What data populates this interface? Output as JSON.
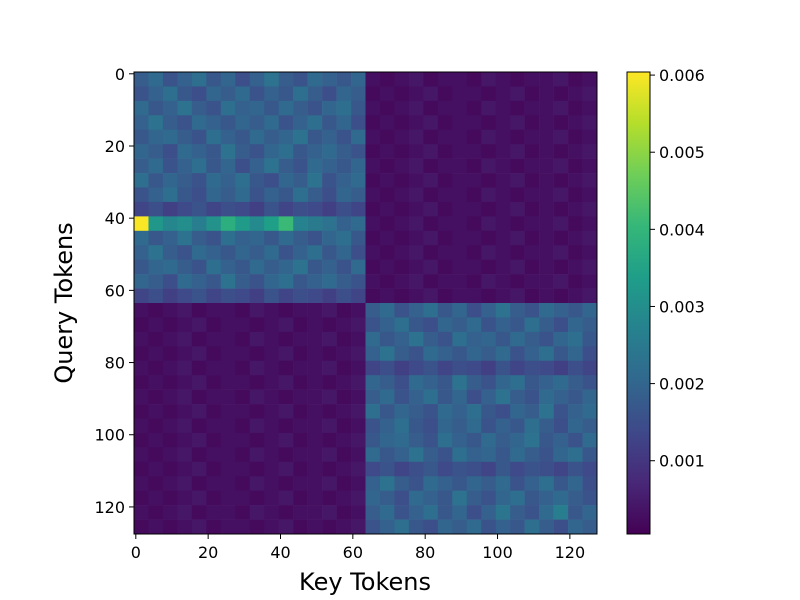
{
  "chart_data": {
    "type": "heatmap",
    "xlabel": "Key Tokens",
    "ylabel": "Query Tokens",
    "xlim": [
      -0.5,
      127.5
    ],
    "ylim": [
      127.5,
      -0.5
    ],
    "xticks": [
      0,
      20,
      40,
      60,
      80,
      100,
      120
    ],
    "yticks": [
      0,
      20,
      40,
      60,
      80,
      100,
      120
    ],
    "colormap": "viridis",
    "colorbar_lim": [
      5e-05,
      0.00604
    ],
    "colorbar_ticks": [
      0.001,
      0.002,
      0.003,
      0.004,
      0.005,
      0.006
    ],
    "z": [
      [
        0.0018,
        0.0021,
        0.0016,
        0.0019,
        0.0022,
        0.0017,
        0.002,
        0.0015,
        0.0019,
        0.0023,
        0.0018,
        0.0016,
        0.0021,
        0.0019,
        0.0017,
        0.002,
        0.0003,
        0.0002,
        0.0003,
        0.0004,
        0.0002,
        0.0003,
        0.0003,
        0.0002,
        0.0004,
        0.0003,
        0.0002,
        0.0003,
        0.0003,
        0.0004,
        0.0002,
        0.0003
      ],
      [
        0.0016,
        0.0019,
        0.0022,
        0.0017,
        0.0015,
        0.002,
        0.0018,
        0.0021,
        0.0016,
        0.0019,
        0.0017,
        0.0022,
        0.0018,
        0.0015,
        0.002,
        0.0018,
        0.0002,
        0.0003,
        0.0002,
        0.0003,
        0.0004,
        0.0002,
        0.0003,
        0.0003,
        0.0002,
        0.0003,
        0.0004,
        0.0002,
        0.0003,
        0.0002,
        0.0003,
        0.0004
      ],
      [
        0.0021,
        0.0017,
        0.0019,
        0.0023,
        0.0018,
        0.0016,
        0.0022,
        0.0019,
        0.002,
        0.0017,
        0.0021,
        0.0018,
        0.0016,
        0.002,
        0.0022,
        0.0017,
        0.0003,
        0.0002,
        0.0003,
        0.0004,
        0.0002,
        0.0003,
        0.0003,
        0.0002,
        0.0004,
        0.0003,
        0.0002,
        0.0003,
        0.0003,
        0.0004,
        0.0002,
        0.0003
      ],
      [
        0.0019,
        0.0023,
        0.0018,
        0.0016,
        0.0021,
        0.0019,
        0.0017,
        0.002,
        0.0018,
        0.0021,
        0.0016,
        0.0019,
        0.0022,
        0.0017,
        0.002,
        0.0015,
        0.0002,
        0.0003,
        0.0002,
        0.0003,
        0.0004,
        0.0002,
        0.0003,
        0.0003,
        0.0002,
        0.0003,
        0.0004,
        0.0002,
        0.0003,
        0.0002,
        0.0003,
        0.0004
      ],
      [
        0.0017,
        0.002,
        0.0021,
        0.0018,
        0.0016,
        0.0022,
        0.0019,
        0.0017,
        0.0021,
        0.0018,
        0.002,
        0.0023,
        0.0017,
        0.0019,
        0.0016,
        0.0021,
        0.0003,
        0.0002,
        0.0003,
        0.0004,
        0.0002,
        0.0003,
        0.0003,
        0.0002,
        0.0004,
        0.0003,
        0.0002,
        0.0003,
        0.0003,
        0.0004,
        0.0002,
        0.0003
      ],
      [
        0.002,
        0.0018,
        0.0015,
        0.0021,
        0.0019,
        0.0017,
        0.0023,
        0.0018,
        0.0016,
        0.002,
        0.0022,
        0.0017,
        0.0019,
        0.0021,
        0.0018,
        0.0016,
        0.0002,
        0.0003,
        0.0002,
        0.0003,
        0.0004,
        0.0002,
        0.0003,
        0.0003,
        0.0002,
        0.0003,
        0.0004,
        0.0002,
        0.0003,
        0.0002,
        0.0003,
        0.0004
      ],
      [
        0.0018,
        0.0021,
        0.0016,
        0.0019,
        0.0022,
        0.0017,
        0.002,
        0.0015,
        0.0019,
        0.0023,
        0.0018,
        0.0016,
        0.0021,
        0.0019,
        0.0017,
        0.002,
        0.0003,
        0.0002,
        0.0003,
        0.0004,
        0.0002,
        0.0003,
        0.0003,
        0.0002,
        0.0004,
        0.0003,
        0.0002,
        0.0003,
        0.0003,
        0.0004,
        0.0002,
        0.0003
      ],
      [
        0.0022,
        0.0017,
        0.002,
        0.0018,
        0.0016,
        0.0021,
        0.0019,
        0.0022,
        0.0017,
        0.0015,
        0.002,
        0.0018,
        0.0023,
        0.0016,
        0.0019,
        0.0021,
        0.0002,
        0.0003,
        0.0002,
        0.0003,
        0.0004,
        0.0002,
        0.0003,
        0.0003,
        0.0002,
        0.0003,
        0.0004,
        0.0002,
        0.0003,
        0.0002,
        0.0003,
        0.0004
      ],
      [
        0.0016,
        0.0019,
        0.0022,
        0.0017,
        0.0015,
        0.002,
        0.0018,
        0.0021,
        0.0016,
        0.0019,
        0.0017,
        0.0022,
        0.0018,
        0.0015,
        0.002,
        0.0018,
        0.0003,
        0.0002,
        0.0003,
        0.0004,
        0.0002,
        0.0003,
        0.0003,
        0.0002,
        0.0004,
        0.0003,
        0.0002,
        0.0003,
        0.0003,
        0.0004,
        0.0002,
        0.0003
      ],
      [
        0.0013,
        0.0015,
        0.0012,
        0.0014,
        0.0016,
        0.0013,
        0.0015,
        0.0014,
        0.0012,
        0.0016,
        0.0013,
        0.0015,
        0.0014,
        0.0012,
        0.0015,
        0.0013,
        0.0002,
        0.0003,
        0.0002,
        0.0003,
        0.0004,
        0.0002,
        0.0003,
        0.0003,
        0.0002,
        0.0003,
        0.0004,
        0.0002,
        0.0003,
        0.0002,
        0.0003,
        0.0004
      ],
      [
        0.006,
        0.0032,
        0.0028,
        0.003,
        0.0026,
        0.0031,
        0.0038,
        0.0033,
        0.0029,
        0.0034,
        0.0041,
        0.0027,
        0.0025,
        0.0023,
        0.0019,
        0.0021,
        0.0003,
        0.0002,
        0.0003,
        0.0004,
        0.0002,
        0.0003,
        0.0003,
        0.0002,
        0.0004,
        0.0003,
        0.0002,
        0.0003,
        0.0003,
        0.0004,
        0.0002,
        0.0003
      ],
      [
        0.0021,
        0.0017,
        0.0019,
        0.0023,
        0.0018,
        0.0016,
        0.0022,
        0.0019,
        0.002,
        0.0017,
        0.0021,
        0.0018,
        0.0016,
        0.002,
        0.0022,
        0.0017,
        0.0002,
        0.0003,
        0.0002,
        0.0003,
        0.0004,
        0.0002,
        0.0003,
        0.0003,
        0.0002,
        0.0003,
        0.0004,
        0.0002,
        0.0003,
        0.0002,
        0.0003,
        0.0004
      ],
      [
        0.0019,
        0.0023,
        0.0018,
        0.0016,
        0.0021,
        0.0019,
        0.0017,
        0.002,
        0.0018,
        0.0021,
        0.0016,
        0.0019,
        0.0022,
        0.0017,
        0.002,
        0.0015,
        0.0003,
        0.0002,
        0.0003,
        0.0004,
        0.0002,
        0.0003,
        0.0003,
        0.0002,
        0.0004,
        0.0003,
        0.0002,
        0.0003,
        0.0003,
        0.0004,
        0.0002,
        0.0003
      ],
      [
        0.0017,
        0.002,
        0.0021,
        0.0018,
        0.0016,
        0.0022,
        0.0019,
        0.0017,
        0.0021,
        0.0018,
        0.002,
        0.0023,
        0.0017,
        0.0019,
        0.0016,
        0.0021,
        0.0002,
        0.0003,
        0.0002,
        0.0003,
        0.0004,
        0.0002,
        0.0003,
        0.0003,
        0.0002,
        0.0003,
        0.0004,
        0.0002,
        0.0003,
        0.0002,
        0.0003,
        0.0004
      ],
      [
        0.002,
        0.0018,
        0.0015,
        0.0021,
        0.0019,
        0.0017,
        0.0023,
        0.0018,
        0.0016,
        0.002,
        0.0022,
        0.0017,
        0.0019,
        0.0021,
        0.0018,
        0.0016,
        0.0003,
        0.0002,
        0.0003,
        0.0004,
        0.0002,
        0.0003,
        0.0003,
        0.0002,
        0.0004,
        0.0003,
        0.0002,
        0.0003,
        0.0003,
        0.0004,
        0.0002,
        0.0003
      ],
      [
        0.0013,
        0.0015,
        0.0012,
        0.0014,
        0.0016,
        0.0013,
        0.0015,
        0.0014,
        0.0012,
        0.0016,
        0.0013,
        0.0015,
        0.0014,
        0.0012,
        0.0015,
        0.0013,
        0.0002,
        0.0003,
        0.0002,
        0.0003,
        0.0004,
        0.0002,
        0.0003,
        0.0003,
        0.0002,
        0.0003,
        0.0004,
        0.0002,
        0.0003,
        0.0002,
        0.0003,
        0.0004
      ],
      [
        0.0003,
        0.0002,
        0.0003,
        0.0004,
        0.0002,
        0.0003,
        0.0003,
        0.0002,
        0.0004,
        0.0003,
        0.0002,
        0.0003,
        0.0003,
        0.0004,
        0.0002,
        0.0003,
        0.0018,
        0.0021,
        0.0016,
        0.0019,
        0.0022,
        0.0017,
        0.002,
        0.0015,
        0.0019,
        0.0023,
        0.0018,
        0.0016,
        0.0021,
        0.0019,
        0.0017,
        0.002
      ],
      [
        0.0002,
        0.0003,
        0.0002,
        0.0003,
        0.0004,
        0.0002,
        0.0003,
        0.0003,
        0.0002,
        0.0003,
        0.0004,
        0.0002,
        0.0003,
        0.0002,
        0.0003,
        0.0004,
        0.0016,
        0.0019,
        0.0022,
        0.0017,
        0.0015,
        0.002,
        0.0018,
        0.0021,
        0.0016,
        0.0019,
        0.0017,
        0.0022,
        0.0018,
        0.0015,
        0.002,
        0.0018
      ],
      [
        0.0003,
        0.0002,
        0.0003,
        0.0004,
        0.0002,
        0.0003,
        0.0003,
        0.0002,
        0.0004,
        0.0003,
        0.0002,
        0.0003,
        0.0003,
        0.0004,
        0.0002,
        0.0003,
        0.0021,
        0.0017,
        0.0019,
        0.0023,
        0.0018,
        0.0016,
        0.0022,
        0.0019,
        0.002,
        0.0017,
        0.0021,
        0.0018,
        0.0016,
        0.002,
        0.0022,
        0.0017
      ],
      [
        0.0002,
        0.0003,
        0.0002,
        0.0003,
        0.0004,
        0.0002,
        0.0003,
        0.0003,
        0.0002,
        0.0003,
        0.0004,
        0.0002,
        0.0003,
        0.0002,
        0.0003,
        0.0004,
        0.0019,
        0.0023,
        0.0018,
        0.0016,
        0.0021,
        0.0019,
        0.0017,
        0.002,
        0.0018,
        0.0021,
        0.0016,
        0.0019,
        0.0022,
        0.0017,
        0.002,
        0.0015
      ],
      [
        0.0003,
        0.0002,
        0.0003,
        0.0004,
        0.0002,
        0.0003,
        0.0003,
        0.0002,
        0.0004,
        0.0003,
        0.0002,
        0.0003,
        0.0003,
        0.0004,
        0.0002,
        0.0003,
        0.0013,
        0.0015,
        0.0012,
        0.0014,
        0.0016,
        0.0013,
        0.0015,
        0.0014,
        0.0012,
        0.0016,
        0.0013,
        0.0015,
        0.0014,
        0.0012,
        0.0015,
        0.0013
      ],
      [
        0.0002,
        0.0003,
        0.0002,
        0.0003,
        0.0004,
        0.0002,
        0.0003,
        0.0003,
        0.0002,
        0.0003,
        0.0004,
        0.0002,
        0.0003,
        0.0002,
        0.0003,
        0.0004,
        0.002,
        0.0018,
        0.0015,
        0.0021,
        0.0019,
        0.0017,
        0.0023,
        0.0018,
        0.0016,
        0.002,
        0.0022,
        0.0017,
        0.0019,
        0.0021,
        0.0018,
        0.0016
      ],
      [
        0.0003,
        0.0002,
        0.0003,
        0.0004,
        0.0002,
        0.0003,
        0.0003,
        0.0002,
        0.0004,
        0.0003,
        0.0002,
        0.0003,
        0.0003,
        0.0004,
        0.0002,
        0.0003,
        0.0018,
        0.0021,
        0.0016,
        0.0019,
        0.0022,
        0.0017,
        0.002,
        0.0015,
        0.0019,
        0.0023,
        0.0018,
        0.0016,
        0.0021,
        0.0019,
        0.0017,
        0.002
      ],
      [
        0.0002,
        0.0003,
        0.0002,
        0.0003,
        0.0004,
        0.0002,
        0.0003,
        0.0003,
        0.0002,
        0.0003,
        0.0004,
        0.0002,
        0.0003,
        0.0002,
        0.0003,
        0.0004,
        0.0022,
        0.0017,
        0.002,
        0.0018,
        0.0016,
        0.0021,
        0.0019,
        0.0022,
        0.0017,
        0.0015,
        0.002,
        0.0018,
        0.0023,
        0.0016,
        0.0019,
        0.0021
      ],
      [
        0.0003,
        0.0002,
        0.0003,
        0.0004,
        0.0002,
        0.0003,
        0.0003,
        0.0002,
        0.0004,
        0.0003,
        0.0002,
        0.0003,
        0.0003,
        0.0004,
        0.0002,
        0.0003,
        0.0016,
        0.0019,
        0.0022,
        0.0017,
        0.0015,
        0.002,
        0.0018,
        0.0021,
        0.0016,
        0.0019,
        0.0017,
        0.0022,
        0.0018,
        0.0015,
        0.002,
        0.0018
      ],
      [
        0.0002,
        0.0003,
        0.0002,
        0.0003,
        0.0004,
        0.0002,
        0.0003,
        0.0003,
        0.0002,
        0.0003,
        0.0004,
        0.0002,
        0.0003,
        0.0002,
        0.0003,
        0.0004,
        0.0017,
        0.002,
        0.0021,
        0.0018,
        0.0016,
        0.0022,
        0.0019,
        0.0017,
        0.0021,
        0.0018,
        0.002,
        0.0023,
        0.0017,
        0.0019,
        0.0016,
        0.0021
      ],
      [
        0.0003,
        0.0002,
        0.0003,
        0.0004,
        0.0002,
        0.0003,
        0.0003,
        0.0002,
        0.0004,
        0.0003,
        0.0002,
        0.0003,
        0.0003,
        0.0004,
        0.0002,
        0.0003,
        0.0021,
        0.0017,
        0.0019,
        0.0023,
        0.0018,
        0.0016,
        0.0022,
        0.0019,
        0.002,
        0.0017,
        0.0021,
        0.0018,
        0.0016,
        0.002,
        0.0022,
        0.0017
      ],
      [
        0.0002,
        0.0003,
        0.0002,
        0.0003,
        0.0004,
        0.0002,
        0.0003,
        0.0003,
        0.0002,
        0.0003,
        0.0004,
        0.0002,
        0.0003,
        0.0002,
        0.0003,
        0.0004,
        0.0014,
        0.0016,
        0.0013,
        0.0015,
        0.0017,
        0.0014,
        0.0016,
        0.0015,
        0.0013,
        0.0017,
        0.0014,
        0.0016,
        0.0015,
        0.0013,
        0.0016,
        0.0014
      ],
      [
        0.0003,
        0.0002,
        0.0003,
        0.0004,
        0.0002,
        0.0003,
        0.0003,
        0.0002,
        0.0004,
        0.0003,
        0.0002,
        0.0003,
        0.0003,
        0.0004,
        0.0002,
        0.0003,
        0.0019,
        0.0023,
        0.0018,
        0.0016,
        0.0021,
        0.0019,
        0.0017,
        0.002,
        0.0018,
        0.0021,
        0.0016,
        0.0019,
        0.0022,
        0.0017,
        0.002,
        0.0015
      ],
      [
        0.0002,
        0.0003,
        0.0002,
        0.0003,
        0.0004,
        0.0002,
        0.0003,
        0.0003,
        0.0002,
        0.0003,
        0.0004,
        0.0002,
        0.0003,
        0.0002,
        0.0003,
        0.0004,
        0.002,
        0.0018,
        0.0015,
        0.0021,
        0.0019,
        0.0017,
        0.0023,
        0.0018,
        0.0016,
        0.002,
        0.0022,
        0.0017,
        0.0019,
        0.0021,
        0.0018,
        0.0016
      ],
      [
        0.0003,
        0.0002,
        0.0003,
        0.0004,
        0.0002,
        0.0003,
        0.0003,
        0.0002,
        0.0004,
        0.0003,
        0.0002,
        0.0003,
        0.0003,
        0.0004,
        0.0002,
        0.0003,
        0.0018,
        0.0021,
        0.0016,
        0.0019,
        0.0022,
        0.0017,
        0.002,
        0.0015,
        0.0019,
        0.0024,
        0.0018,
        0.0016,
        0.0021,
        0.0026,
        0.0017,
        0.002
      ],
      [
        0.0002,
        0.0003,
        0.0002,
        0.0003,
        0.0004,
        0.0002,
        0.0003,
        0.0003,
        0.0002,
        0.0003,
        0.0004,
        0.0002,
        0.0003,
        0.0002,
        0.0003,
        0.0004,
        0.0016,
        0.0019,
        0.0022,
        0.0017,
        0.0015,
        0.002,
        0.0018,
        0.0021,
        0.0016,
        0.0019,
        0.0017,
        0.0022,
        0.0018,
        0.0015,
        0.002,
        0.0018
      ]
    ]
  }
}
